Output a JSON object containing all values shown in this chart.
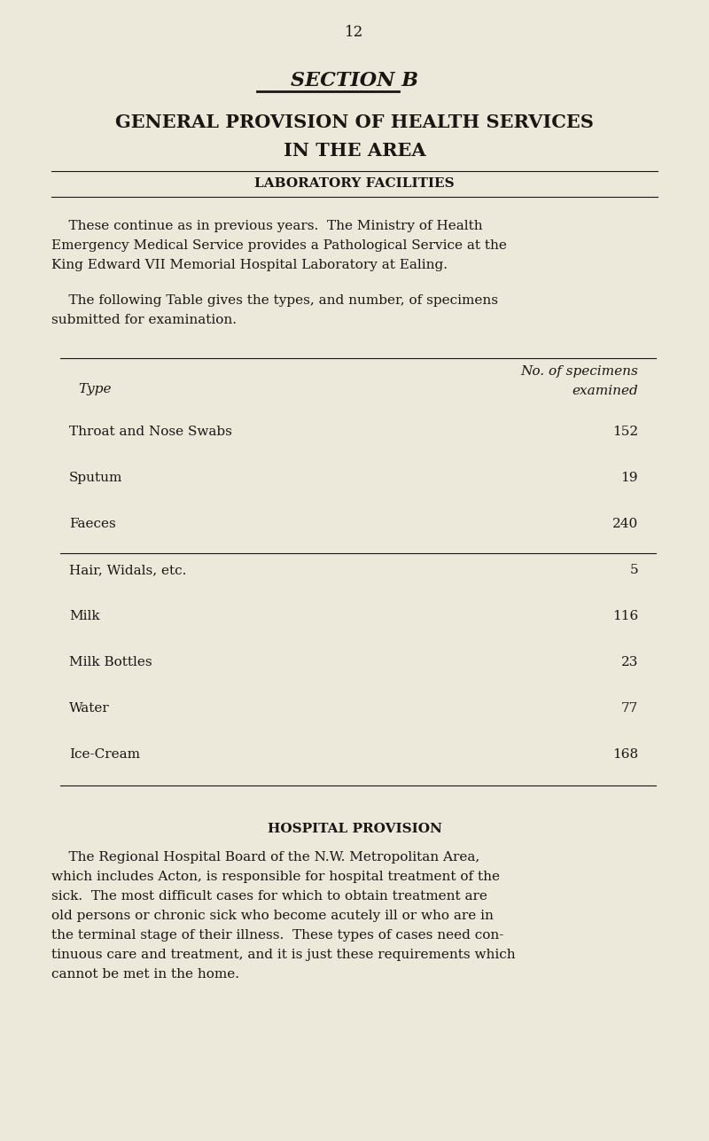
{
  "page_number": "12",
  "bg_color": "#ece8da",
  "text_color": "#1a1614",
  "section_title": "SECTION B",
  "main_title_line1": "GENERAL PROVISION OF HEALTH SERVICES",
  "main_title_line2": "IN THE AREA",
  "lab_title": "LABORATORY FACILITIES",
  "intro_line1": "    These continue as in previous years.  The Ministry of Health",
  "intro_line2": "Emergency Medical Service provides a Pathological Service at the",
  "intro_line3": "King Edward VII Memorial Hospital Laboratory at Ealing.",
  "table_intro_line1": "    The following Table gives the types, and number, of specimens",
  "table_intro_line2": "submitted for examination.",
  "col_header1": "No. of specimens",
  "col_header2": "examined",
  "type_header": "Type",
  "table_rows": [
    {
      "type": "Throat and Nose Swabs",
      "value": "152"
    },
    {
      "type": "Sputum",
      "value": "19"
    },
    {
      "type": "Faeces",
      "value": "240"
    },
    {
      "type": "Hair, Widals, etc.",
      "value": "5"
    },
    {
      "type": "Milk",
      "value": "116"
    },
    {
      "type": "Milk Bottles",
      "value": "23"
    },
    {
      "type": "Water",
      "value": "77"
    },
    {
      "type": "Ice-Cream",
      "value": "168"
    }
  ],
  "separator_after_row": 2,
  "hospital_title": "HOSPITAL PROVISION",
  "hospital_lines": [
    "    The Regional Hospital Board of the N.W. Metropolitan Area,",
    "which includes Acton, is responsible for hospital treatment of the",
    "sick.  The most difficult cases for which to obtain treatment are",
    "old persons or chronic sick who become acutely ill or who are in",
    "the terminal stage of their illness.  These types of cases need con-",
    "tinuous care and treatment, and it is just these requirements which",
    "cannot be met in the home."
  ],
  "fig_width": 8.0,
  "fig_height": 12.87,
  "dpi": 100
}
